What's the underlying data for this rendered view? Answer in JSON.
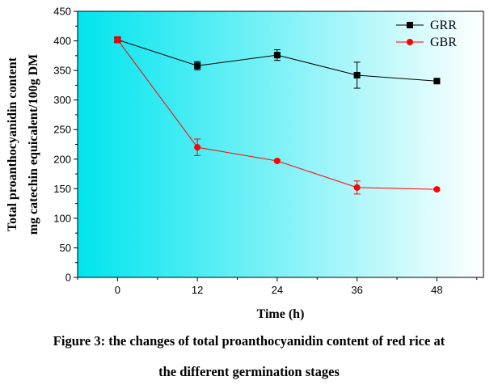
{
  "chart_data": {
    "type": "line",
    "title": "",
    "xlabel": "Time (h)",
    "ylabel_lines": [
      "Total proanthocyanidin content",
      "mg catechin equicalent/100g DM"
    ],
    "x": [
      0,
      12,
      24,
      36,
      48
    ],
    "x_ticks": [
      0,
      12,
      24,
      36,
      48
    ],
    "y_ticks": [
      0,
      50,
      100,
      150,
      200,
      250,
      300,
      350,
      400,
      450
    ],
    "xlim": [
      -6,
      55
    ],
    "ylim": [
      0,
      450
    ],
    "grid": false,
    "legend_position": "top-right",
    "series": [
      {
        "name": "GRR",
        "color": "#000000",
        "marker": "square",
        "values": [
          402,
          358,
          376,
          342,
          332
        ],
        "errors": [
          5,
          7,
          9,
          22,
          3
        ]
      },
      {
        "name": "GBR",
        "color": "#ff0000",
        "marker": "circle",
        "values": [
          402,
          220,
          197,
          152,
          149
        ],
        "errors": [
          5,
          14,
          2,
          11,
          2
        ]
      }
    ],
    "background_gradient": [
      "#00e5ee",
      "#ffffff"
    ]
  },
  "caption": {
    "line1": "Figure 3: the changes of total proanthocyanidin content of red rice at",
    "line2": "the different germination stages"
  }
}
